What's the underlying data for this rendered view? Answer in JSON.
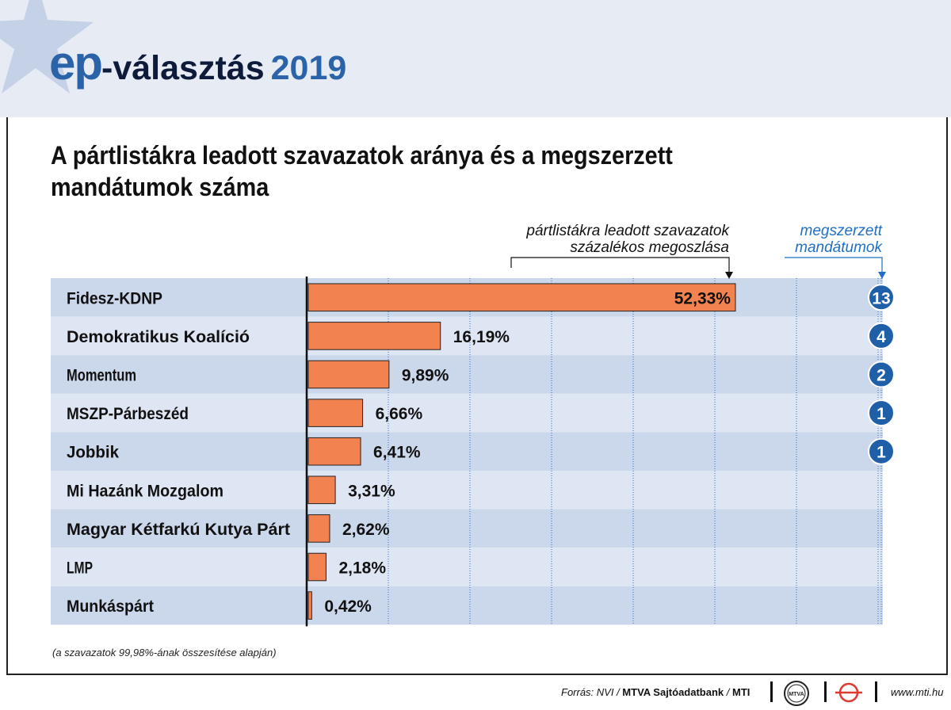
{
  "header": {
    "logo_ep": "ep",
    "logo_rest": "-választás",
    "logo_year": "2019"
  },
  "title": "A pártlistákra leadott szavazatok aránya és a megszerzett mandátumok száma",
  "chart_data": {
    "type": "bar",
    "orientation": "horizontal",
    "title": "A pártlistákra leadott szavazatok aránya és a megszerzett mandátumok száma",
    "categories": [
      "Fidesz-KDNP",
      "Demokratikus Koalíció",
      "Momentum",
      "MSZP-Párbeszéd",
      "Jobbik",
      "Mi Hazánk Mozgalom",
      "Magyar Kétfarkú Kutya Párt",
      "LMP",
      "Munkáspárt"
    ],
    "series": [
      {
        "name": "pártlistákra leadott szavazatok százalékos megoszlása",
        "values": [
          52.33,
          16.19,
          9.89,
          6.66,
          6.41,
          3.31,
          2.62,
          2.18,
          0.42
        ],
        "labels": [
          "52,33%",
          "16,19%",
          "9,89%",
          "6,66%",
          "6,41%",
          "3,31%",
          "2,62%",
          "2,18%",
          "0,42%"
        ],
        "color": "#f2824f"
      },
      {
        "name": "megszerzett mandátumok",
        "values": [
          13,
          4,
          2,
          1,
          1,
          null,
          null,
          null,
          null
        ],
        "labels": [
          "13",
          "4",
          "2",
          "1",
          "1",
          "",
          "",
          "",
          ""
        ],
        "color": "#1f5fa8"
      }
    ],
    "annotation_votes": "pártlistákra leadott szavazatok százalékos megoszlása",
    "annotation_seats": "megszerzett mandátumok",
    "xlim": [
      0,
      70
    ],
    "grid": true,
    "colors": {
      "bar": "#f2824f",
      "badge": "#1f5fa8",
      "band_dark": "#cbd7eb",
      "band_light": "#dee6f3",
      "grid": "#2f6fc4"
    }
  },
  "note": "(a szavazatok 99,98%-ának összesítése alapján)",
  "footer": {
    "source_prefix": "Forrás: NVI / ",
    "source_bold": "MTVA Sajtóadatbank",
    "source_sep": " / ",
    "source_mti": "MTI",
    "mtva_logo_text": "MTVA",
    "website": "www.mti.hu"
  }
}
